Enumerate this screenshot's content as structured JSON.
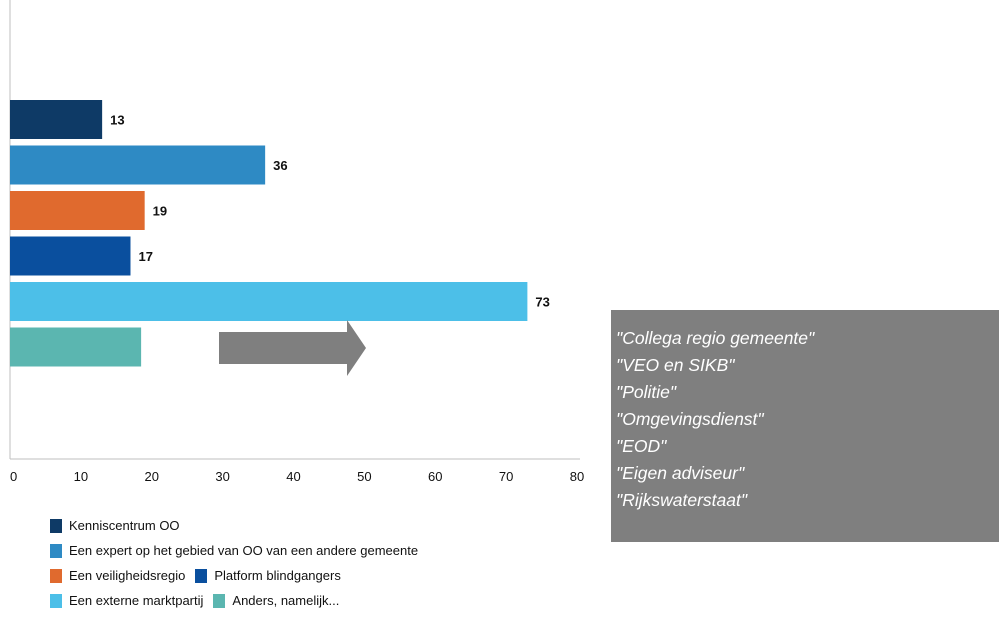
{
  "chart_data": {
    "type": "bar",
    "orientation": "horizontal",
    "categories": [
      "Kenniscentrum OO",
      "Een expert op het gebied van OO van een andere gemeente",
      "Een veiligheidsregio",
      "Platform blindgangers",
      "Een externe marktpartij",
      "Anders, namelijk..."
    ],
    "values": [
      13,
      36,
      19,
      17,
      73,
      18.5
    ],
    "data_labels": [
      "13",
      "36",
      "19",
      "17",
      "73",
      ""
    ],
    "colors": [
      "#0e3a66",
      "#2e8ac4",
      "#e06a2e",
      "#0a4f9e",
      "#4cbfe8",
      "#5bb6b0"
    ],
    "xlim": [
      0,
      80
    ],
    "xticks": [
      "0",
      "10",
      "20",
      "30",
      "40",
      "50",
      "60",
      "70",
      "80"
    ],
    "xlabel": "",
    "ylabel": "",
    "title": "",
    "grid": false,
    "legend_position": "bottom-left"
  },
  "legend": {
    "rows": [
      [
        {
          "label": "Kenniscentrum OO",
          "color": "#0e3a66"
        }
      ],
      [
        {
          "label": "Een expert op het gebied van OO van een andere gemeente",
          "color": "#2e8ac4"
        }
      ],
      [
        {
          "label": "Een veiligheidsregio",
          "color": "#e06a2e"
        },
        {
          "label": "Platform blindgangers",
          "color": "#0a4f9e"
        }
      ],
      [
        {
          "label": "Een externe marktpartij",
          "color": "#4cbfe8"
        },
        {
          "label": "Anders, namelijk...",
          "color": "#5bb6b0"
        }
      ]
    ]
  },
  "arrow": {
    "color": "#7f7f7f"
  },
  "note": {
    "background": "#7f7f7f",
    "lines": [
      "\"Collega regio gemeente\"",
      "\"VEO en SIKB\"",
      "\"Politie\"",
      "\"Omgevingsdienst\"",
      "\"EOD\"",
      "\"Eigen adviseur\"",
      "\"Rijkswaterstaat\""
    ]
  }
}
